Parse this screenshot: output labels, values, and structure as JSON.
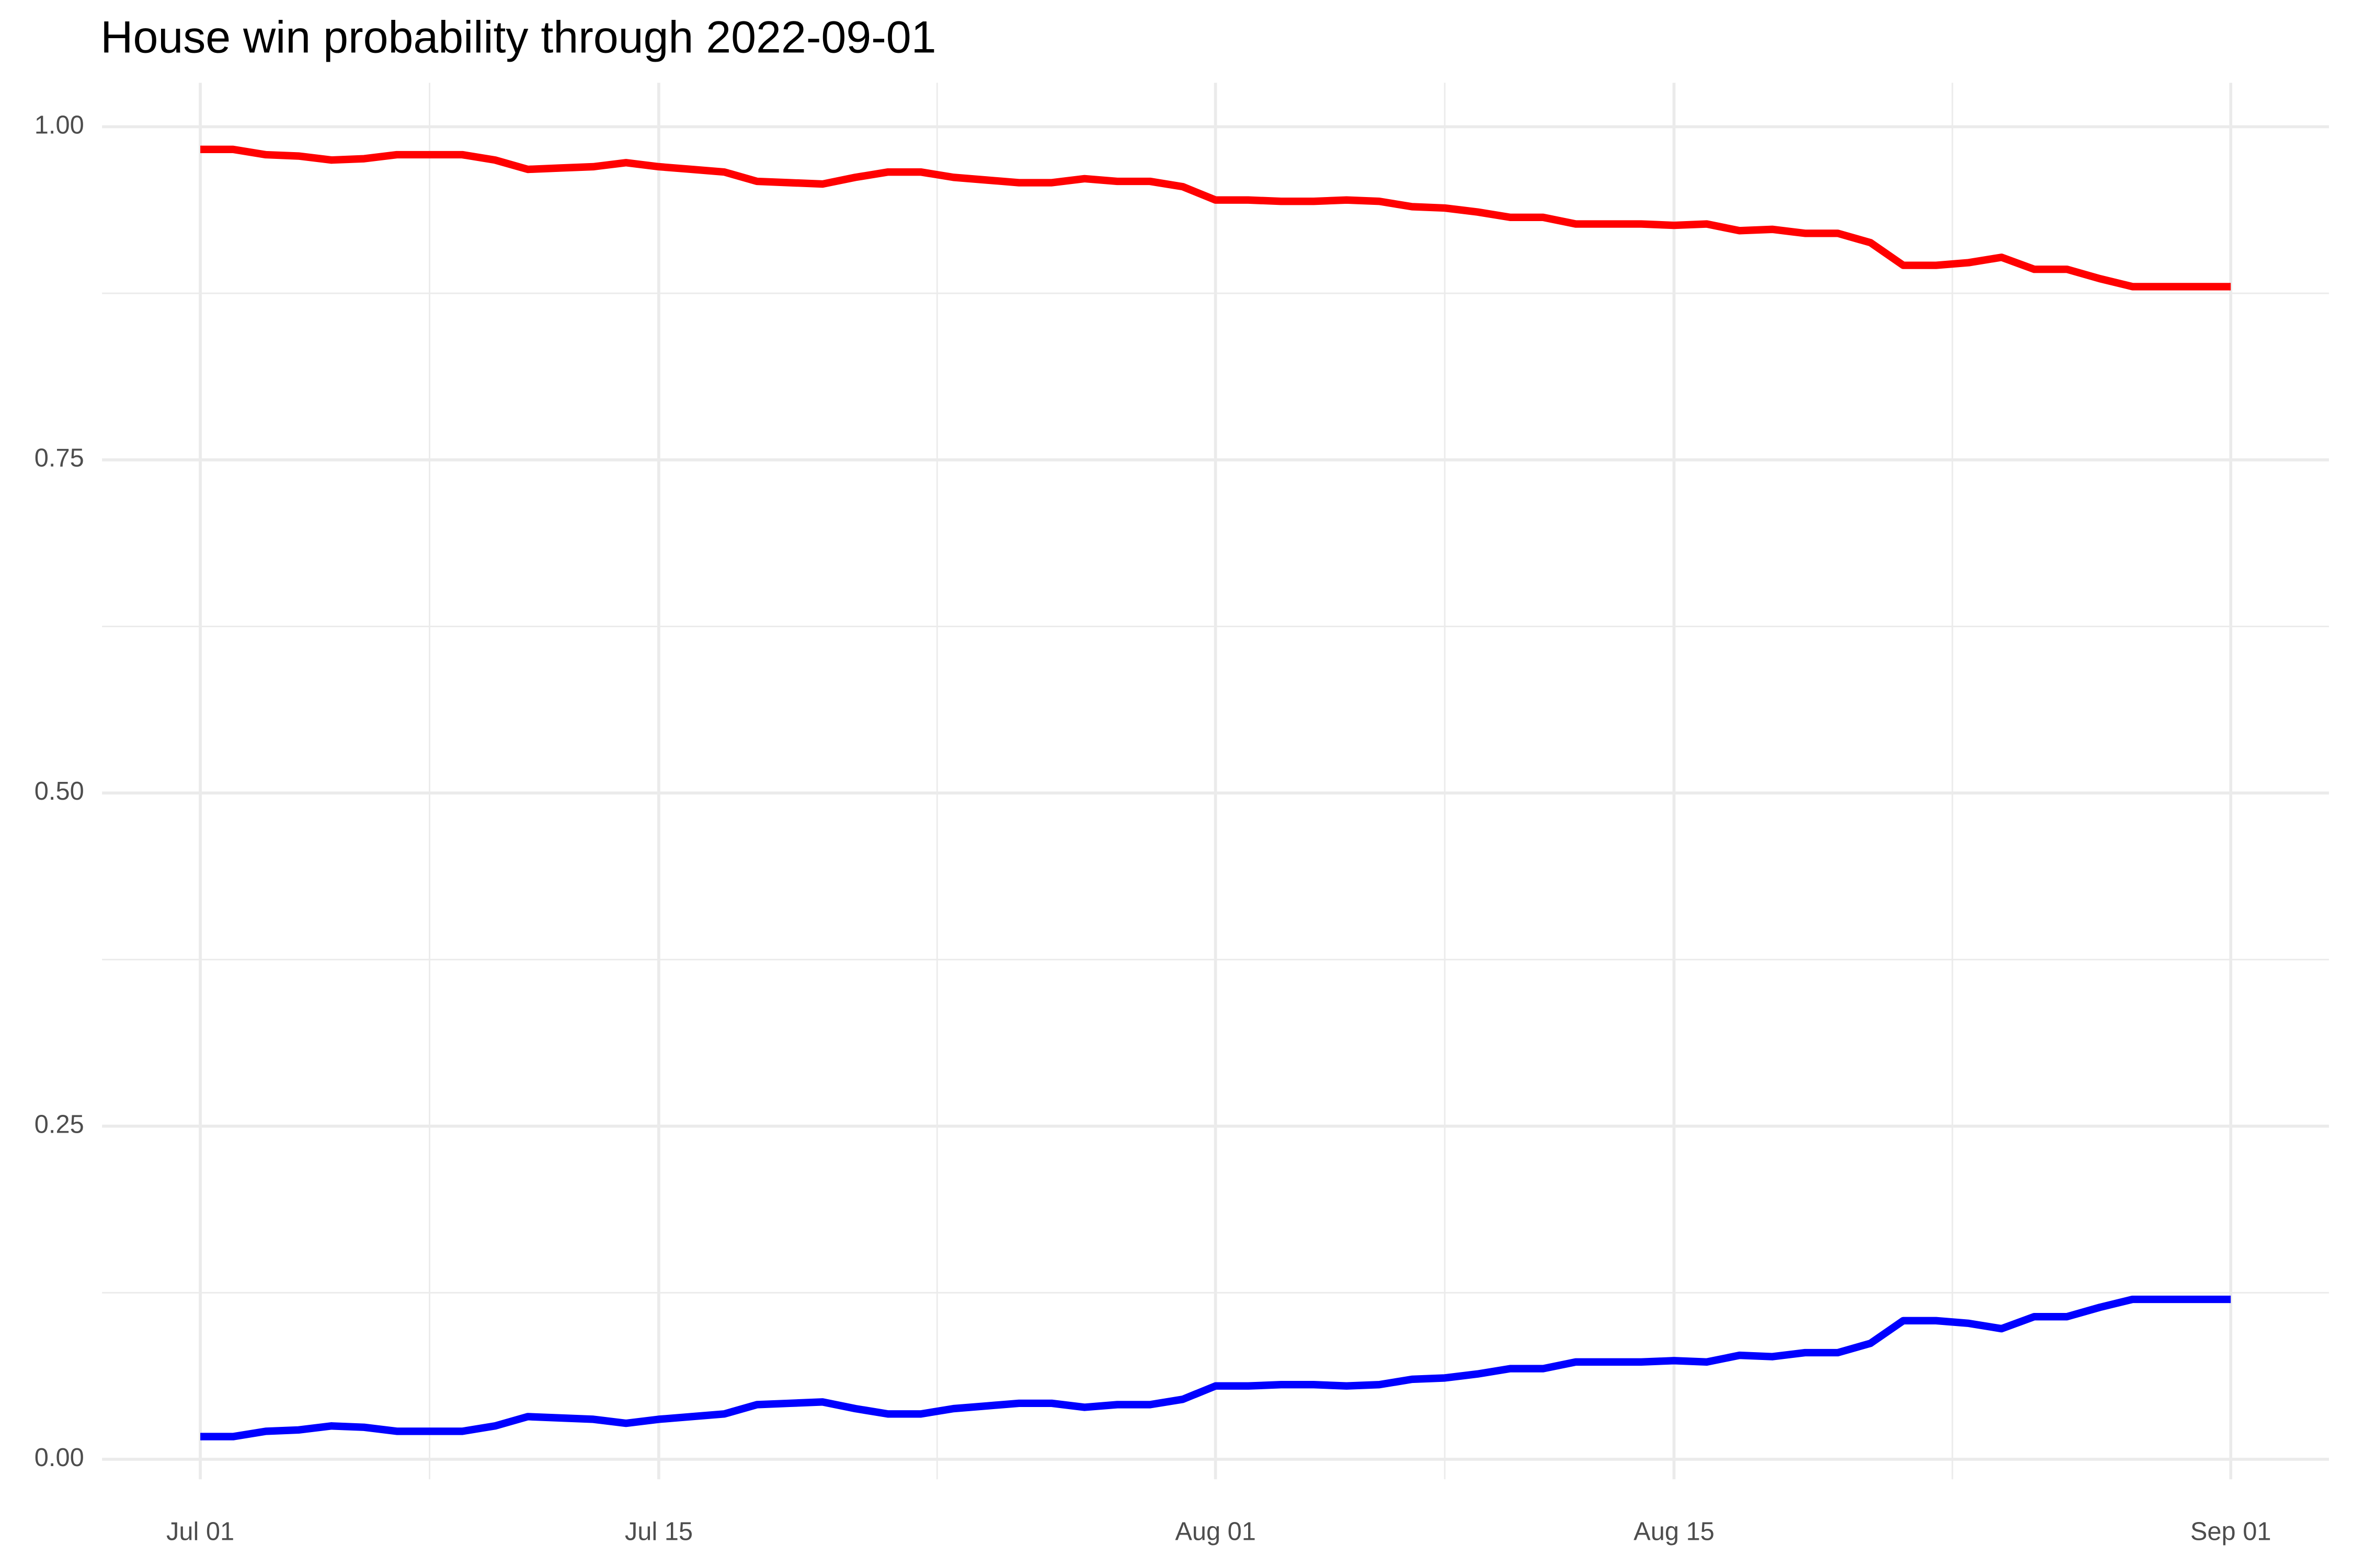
{
  "chart_data": {
    "type": "line",
    "title": "House win probability through 2022-09-01",
    "x": [
      "2022-07-01",
      "2022-07-02",
      "2022-07-03",
      "2022-07-04",
      "2022-07-05",
      "2022-07-06",
      "2022-07-07",
      "2022-07-08",
      "2022-07-09",
      "2022-07-10",
      "2022-07-11",
      "2022-07-12",
      "2022-07-13",
      "2022-07-14",
      "2022-07-15",
      "2022-07-16",
      "2022-07-17",
      "2022-07-18",
      "2022-07-19",
      "2022-07-20",
      "2022-07-21",
      "2022-07-22",
      "2022-07-23",
      "2022-07-24",
      "2022-07-25",
      "2022-07-26",
      "2022-07-27",
      "2022-07-28",
      "2022-07-29",
      "2022-07-30",
      "2022-07-31",
      "2022-08-01",
      "2022-08-02",
      "2022-08-03",
      "2022-08-04",
      "2022-08-05",
      "2022-08-06",
      "2022-08-07",
      "2022-08-08",
      "2022-08-09",
      "2022-08-10",
      "2022-08-11",
      "2022-08-12",
      "2022-08-13",
      "2022-08-14",
      "2022-08-15",
      "2022-08-16",
      "2022-08-17",
      "2022-08-18",
      "2022-08-19",
      "2022-08-20",
      "2022-08-21",
      "2022-08-22",
      "2022-08-23",
      "2022-08-24",
      "2022-08-25",
      "2022-08-26",
      "2022-08-27",
      "2022-08-28",
      "2022-08-29",
      "2022-08-30",
      "2022-08-31",
      "2022-09-01"
    ],
    "series": [
      {
        "color": "#ff0000",
        "values": [
          0.983,
          0.983,
          0.979,
          0.978,
          0.975,
          0.976,
          0.979,
          0.979,
          0.979,
          0.975,
          0.968,
          0.969,
          0.97,
          0.973,
          0.97,
          0.968,
          0.966,
          0.959,
          0.958,
          0.957,
          0.962,
          0.966,
          0.966,
          0.962,
          0.96,
          0.958,
          0.958,
          0.961,
          0.959,
          0.959,
          0.955,
          0.945,
          0.945,
          0.944,
          0.944,
          0.945,
          0.944,
          0.94,
          0.939,
          0.936,
          0.932,
          0.932,
          0.927,
          0.927,
          0.927,
          0.926,
          0.927,
          0.922,
          0.923,
          0.92,
          0.92,
          0.913,
          0.896,
          0.896,
          0.898,
          0.902,
          0.893,
          0.893,
          0.886,
          0.88,
          0.88,
          0.88,
          0.88
        ]
      },
      {
        "color": "#0000ff",
        "values": [
          0.017,
          0.017,
          0.021,
          0.022,
          0.025,
          0.024,
          0.021,
          0.021,
          0.021,
          0.025,
          0.032,
          0.031,
          0.03,
          0.027,
          0.03,
          0.032,
          0.034,
          0.041,
          0.042,
          0.043,
          0.038,
          0.034,
          0.034,
          0.038,
          0.04,
          0.042,
          0.042,
          0.039,
          0.041,
          0.041,
          0.045,
          0.055,
          0.055,
          0.056,
          0.056,
          0.055,
          0.056,
          0.06,
          0.061,
          0.064,
          0.068,
          0.068,
          0.073,
          0.073,
          0.073,
          0.074,
          0.073,
          0.078,
          0.077,
          0.08,
          0.08,
          0.087,
          0.104,
          0.104,
          0.102,
          0.098,
          0.107,
          0.107,
          0.114,
          0.12,
          0.12,
          0.12,
          0.12
        ]
      }
    ],
    "xlim": [
      "2022-06-28",
      "2022-09-04"
    ],
    "xticks": [
      {
        "value": "2022-07-01",
        "label": "Jul 01"
      },
      {
        "value": "2022-07-15",
        "label": "Jul 15"
      },
      {
        "value": "2022-08-01",
        "label": "Aug 01"
      },
      {
        "value": "2022-08-15",
        "label": "Aug 15"
      },
      {
        "value": "2022-09-01",
        "label": "Sep 01"
      }
    ],
    "ylim": [
      -0.015,
      1.033
    ],
    "yticks": [
      {
        "value": 0,
        "label": "0.00"
      },
      {
        "value": 0.25,
        "label": "0.25"
      },
      {
        "value": 0.5,
        "label": "0.50"
      },
      {
        "value": 0.75,
        "label": "0.75"
      },
      {
        "value": 1,
        "label": "1.00"
      }
    ],
    "grid": true
  }
}
